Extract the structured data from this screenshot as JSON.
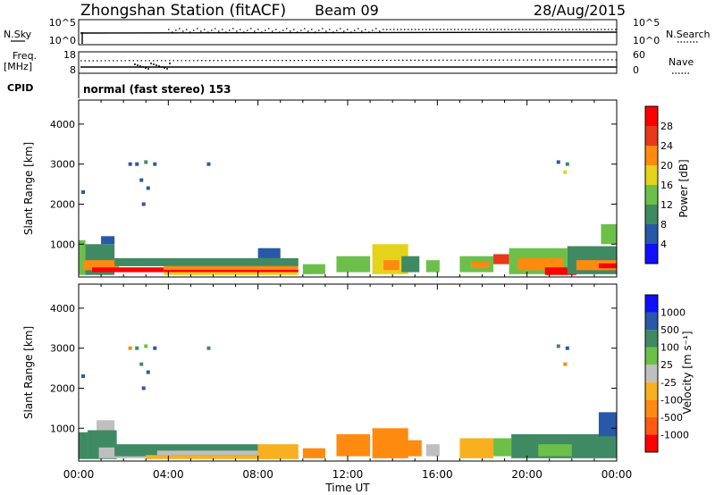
{
  "header": {
    "station": "Zhongshan Station (fitACF)",
    "beam": "Beam 09",
    "date": "28/Aug/2015"
  },
  "summary_panels": {
    "nsky_label": "N.Sky",
    "nsearch_label": "N.Search",
    "noise_left_ticks": [
      "10^5",
      "10^0"
    ],
    "noise_right_ticks": [
      "10^5",
      "10^0"
    ],
    "freq_label": "Freq.",
    "freq_unit": "[MHz]",
    "freq_ticks": [
      "18",
      "8"
    ],
    "nave_label": "Nave",
    "nave_ticks": [
      "60",
      "0"
    ],
    "cpid_label": "CPID",
    "cpid_text": "normal (fast stereo) 153"
  },
  "chart_data": [
    {
      "type": "heatmap",
      "name": "power",
      "ylabel": "Slant Range [km]",
      "colorbar_label": "Power [dB]",
      "y_ticks": [
        1000,
        2000,
        3000,
        4000
      ],
      "ylim": [
        180,
        4600
      ],
      "colorbar_ticks": [
        "4",
        "8",
        "12",
        "16",
        "20",
        "24",
        "28"
      ],
      "colors": [
        "#1010ff",
        "#2858a8",
        "#3f8a63",
        "#6cc04a",
        "#e5d21a",
        "#ff8a10",
        "#e83818",
        "#ff0000"
      ],
      "scatter": [
        {
          "t": 2.3,
          "range": 3000,
          "level": 1
        },
        {
          "t": 2.6,
          "range": 3000,
          "level": 1
        },
        {
          "t": 3.0,
          "range": 3050,
          "level": 2
        },
        {
          "t": 3.4,
          "range": 3000,
          "level": 1
        },
        {
          "t": 5.8,
          "range": 3000,
          "level": 1
        },
        {
          "t": 2.8,
          "range": 2600,
          "level": 1
        },
        {
          "t": 3.1,
          "range": 2400,
          "level": 1
        },
        {
          "t": 2.9,
          "range": 2000,
          "level": 1
        },
        {
          "t": 21.4,
          "range": 3050,
          "level": 1
        },
        {
          "t": 21.8,
          "range": 3000,
          "level": 2
        },
        {
          "t": 21.7,
          "range": 2800,
          "level": 4
        },
        {
          "t": 0.2,
          "range": 2300,
          "level": 1
        }
      ],
      "blocks": [
        {
          "t0": 0.0,
          "t1": 0.3,
          "r0": 230,
          "r1": 1100,
          "level": 3
        },
        {
          "t0": 0.3,
          "t1": 1.6,
          "r0": 230,
          "r1": 1000,
          "level": 2
        },
        {
          "t0": 1.0,
          "t1": 1.6,
          "r0": 1000,
          "r1": 1200,
          "level": 1
        },
        {
          "t0": 0.2,
          "t1": 1.8,
          "r0": 350,
          "r1": 600,
          "level": 5
        },
        {
          "t0": 0.6,
          "t1": 3.8,
          "r0": 300,
          "r1": 420,
          "level": 7
        },
        {
          "t0": 3.8,
          "t1": 9.8,
          "r0": 300,
          "r1": 360,
          "level": 7
        },
        {
          "t0": 3.8,
          "t1": 9.8,
          "r0": 360,
          "r1": 450,
          "level": 5
        },
        {
          "t0": 3.8,
          "t1": 9.8,
          "r0": 230,
          "r1": 300,
          "level": 4
        },
        {
          "t0": 1.6,
          "t1": 9.8,
          "r0": 450,
          "r1": 650,
          "level": 2
        },
        {
          "t0": 8.0,
          "t1": 9.0,
          "r0": 650,
          "r1": 900,
          "level": 1
        },
        {
          "t0": 10.0,
          "t1": 11.0,
          "r0": 250,
          "r1": 500,
          "level": 3
        },
        {
          "t0": 11.5,
          "t1": 13.0,
          "r0": 300,
          "r1": 700,
          "level": 3
        },
        {
          "t0": 13.1,
          "t1": 14.7,
          "r0": 250,
          "r1": 1000,
          "level": 4
        },
        {
          "t0": 13.6,
          "t1": 14.3,
          "r0": 350,
          "r1": 600,
          "level": 5
        },
        {
          "t0": 14.4,
          "t1": 15.2,
          "r0": 300,
          "r1": 700,
          "level": 2
        },
        {
          "t0": 15.5,
          "t1": 16.1,
          "r0": 300,
          "r1": 600,
          "level": 3
        },
        {
          "t0": 17.0,
          "t1": 18.5,
          "r0": 300,
          "r1": 700,
          "level": 3
        },
        {
          "t0": 17.5,
          "t1": 18.3,
          "r0": 400,
          "r1": 560,
          "level": 5
        },
        {
          "t0": 18.5,
          "t1": 19.2,
          "r0": 500,
          "r1": 750,
          "level": 6
        },
        {
          "t0": 19.2,
          "t1": 21.8,
          "r0": 250,
          "r1": 900,
          "level": 3
        },
        {
          "t0": 19.6,
          "t1": 21.6,
          "r0": 350,
          "r1": 650,
          "level": 5
        },
        {
          "t0": 20.8,
          "t1": 22.2,
          "r0": 230,
          "r1": 420,
          "level": 7
        },
        {
          "t0": 21.8,
          "t1": 24.0,
          "r0": 250,
          "r1": 950,
          "level": 2
        },
        {
          "t0": 22.2,
          "t1": 24.0,
          "r0": 350,
          "r1": 600,
          "level": 5
        },
        {
          "t0": 23.2,
          "t1": 24.0,
          "r0": 400,
          "r1": 520,
          "level": 7
        },
        {
          "t0": 23.3,
          "t1": 24.0,
          "r0": 1000,
          "r1": 1500,
          "level": 3
        }
      ]
    },
    {
      "type": "heatmap",
      "name": "velocity",
      "xlabel": "Time UT",
      "ylabel": "Slant Range [km]",
      "colorbar_label": "Velocity [m s⁻¹]",
      "x_ticks": [
        "00:00",
        "04:00",
        "08:00",
        "12:00",
        "16:00",
        "20:00",
        "00:00"
      ],
      "y_ticks": [
        1000,
        2000,
        3000,
        4000
      ],
      "ylim": [
        180,
        4600
      ],
      "colorbar_ticks": [
        "1000",
        "500",
        "100",
        "25",
        "-25",
        "-100",
        "-500",
        "-1000"
      ],
      "colors": [
        "#ff0000",
        "#ff5a10",
        "#ff8a10",
        "#f8b020",
        "#bfbfbf",
        "#6cc04a",
        "#3f8a63",
        "#2858a8",
        "#1010ff"
      ],
      "scatter": [
        {
          "t": 2.3,
          "range": 3000,
          "level": 2
        },
        {
          "t": 2.6,
          "range": 3000,
          "level": 6
        },
        {
          "t": 3.0,
          "range": 3050,
          "level": 5
        },
        {
          "t": 3.4,
          "range": 3000,
          "level": 7
        },
        {
          "t": 5.8,
          "range": 3000,
          "level": 6
        },
        {
          "t": 2.8,
          "range": 2600,
          "level": 6
        },
        {
          "t": 3.1,
          "range": 2400,
          "level": 7
        },
        {
          "t": 2.9,
          "range": 2000,
          "level": 7
        },
        {
          "t": 21.4,
          "range": 3050,
          "level": 6
        },
        {
          "t": 21.8,
          "range": 3000,
          "level": 7
        },
        {
          "t": 21.7,
          "range": 2600,
          "level": 2
        },
        {
          "t": 0.2,
          "range": 2300,
          "level": 7
        }
      ],
      "blocks": [
        {
          "t0": 0.0,
          "t1": 0.4,
          "r0": 230,
          "r1": 900,
          "level": 6
        },
        {
          "t0": 0.4,
          "t1": 1.7,
          "r0": 230,
          "r1": 950,
          "level": 6
        },
        {
          "t0": 0.8,
          "t1": 1.6,
          "r0": 950,
          "r1": 1200,
          "level": 4
        },
        {
          "t0": 0.9,
          "t1": 3.0,
          "r0": 250,
          "r1": 520,
          "level": 4
        },
        {
          "t0": 1.6,
          "t1": 8.0,
          "r0": 300,
          "r1": 600,
          "level": 6
        },
        {
          "t0": 3.0,
          "t1": 9.0,
          "r0": 230,
          "r1": 330,
          "level": 3
        },
        {
          "t0": 3.5,
          "t1": 9.0,
          "r0": 330,
          "r1": 440,
          "level": 4
        },
        {
          "t0": 8.0,
          "t1": 9.8,
          "r0": 230,
          "r1": 600,
          "level": 3
        },
        {
          "t0": 10.0,
          "t1": 11.0,
          "r0": 250,
          "r1": 500,
          "level": 2
        },
        {
          "t0": 11.5,
          "t1": 13.0,
          "r0": 300,
          "r1": 850,
          "level": 2
        },
        {
          "t0": 13.1,
          "t1": 14.7,
          "r0": 250,
          "r1": 1000,
          "level": 2
        },
        {
          "t0": 14.4,
          "t1": 15.3,
          "r0": 300,
          "r1": 700,
          "level": 2
        },
        {
          "t0": 15.5,
          "t1": 16.1,
          "r0": 300,
          "r1": 600,
          "level": 4
        },
        {
          "t0": 17.0,
          "t1": 18.5,
          "r0": 250,
          "r1": 750,
          "level": 3
        },
        {
          "t0": 18.5,
          "t1": 19.3,
          "r0": 300,
          "r1": 750,
          "level": 5
        },
        {
          "t0": 19.3,
          "t1": 24.0,
          "r0": 250,
          "r1": 850,
          "level": 6
        },
        {
          "t0": 20.5,
          "t1": 22.0,
          "r0": 300,
          "r1": 600,
          "level": 5
        },
        {
          "t0": 23.2,
          "t1": 24.0,
          "r0": 800,
          "r1": 1400,
          "level": 7
        }
      ]
    }
  ]
}
